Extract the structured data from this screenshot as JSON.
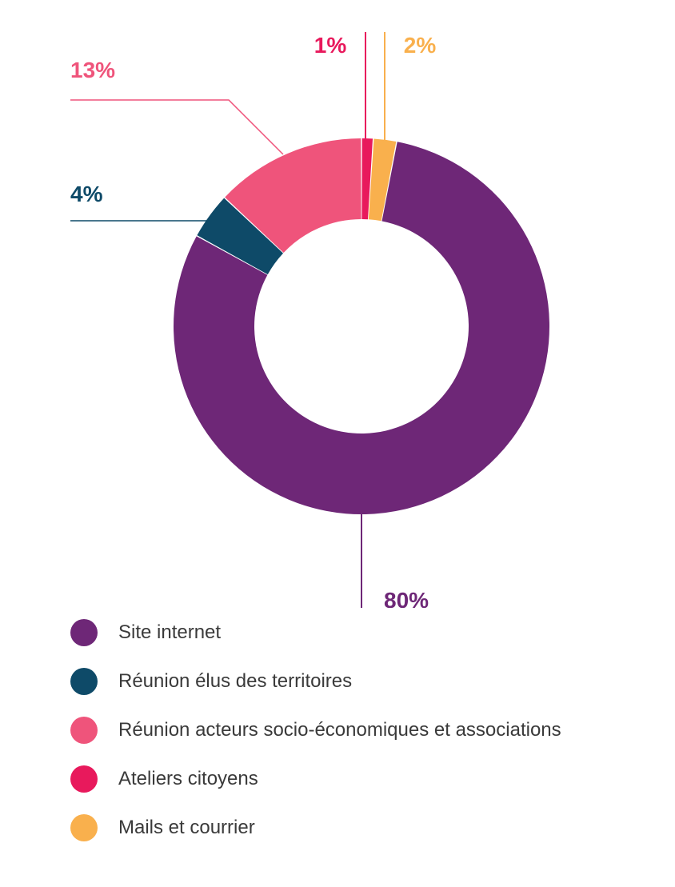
{
  "chart_data": {
    "type": "pie",
    "donut": true,
    "slices": [
      {
        "label": "Ateliers citoyens",
        "value": 1,
        "display": "1%",
        "color": "#E8195C"
      },
      {
        "label": "Mails et courrier",
        "value": 2,
        "display": "2%",
        "color": "#F9B04D"
      },
      {
        "label": "Site internet",
        "value": 80,
        "display": "80%",
        "color": "#6E2777"
      },
      {
        "label": "Réunion élus des territoires",
        "value": 4,
        "display": "4%",
        "color": "#0E4A68"
      },
      {
        "label": "Réunion acteurs socio-économiques et associations",
        "value": 13,
        "display": "13%",
        "color": "#EF547B"
      }
    ],
    "legend": [
      {
        "label": "Site internet",
        "color": "#6E2777"
      },
      {
        "label": "Réunion élus des territoires",
        "color": "#0E4A68"
      },
      {
        "label": "Réunion acteurs socio-économiques et associations",
        "color": "#EF547B"
      },
      {
        "label": "Ateliers citoyens",
        "color": "#E8195C"
      },
      {
        "label": "Mails et courrier",
        "color": "#F9B04D"
      }
    ],
    "legend_position": "bottom-left"
  }
}
